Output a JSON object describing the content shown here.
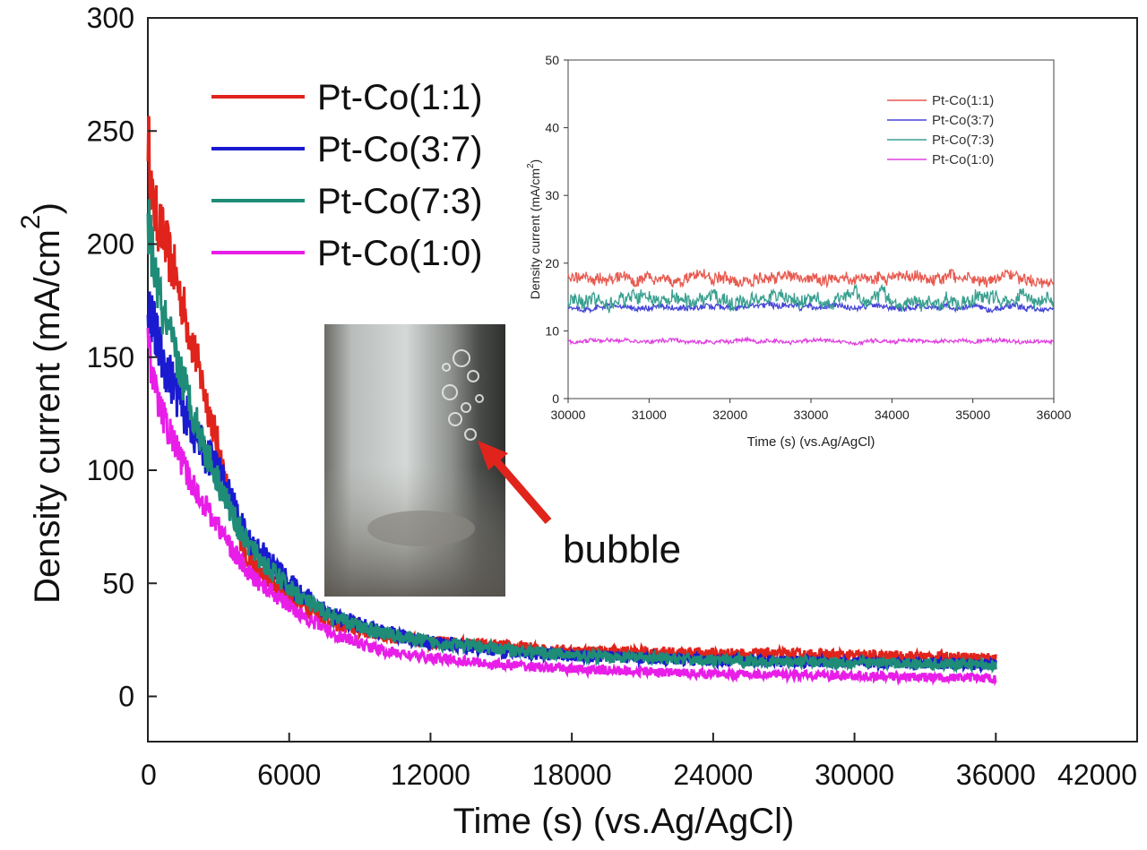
{
  "chart_data": [
    {
      "type": "line",
      "xlabel": "Time (s) (vs.Ag/AgCl)",
      "ylabel": "Density current (mA/cm",
      "ylabel_sup": "2",
      "ylabel_close": ")",
      "xlim": [
        0,
        42000
      ],
      "ylim": [
        -20,
        300
      ],
      "xticks": [
        "0",
        "6000",
        "12000",
        "18000",
        "24000",
        "30000",
        "36000",
        "42000"
      ],
      "xtick_values": [
        0,
        6000,
        12000,
        18000,
        24000,
        30000,
        36000,
        42000
      ],
      "yticks": [
        "0",
        "50",
        "100",
        "150",
        "200",
        "250",
        "300"
      ],
      "ytick_values": [
        0,
        50,
        100,
        150,
        200,
        250,
        300
      ],
      "legend_position": "top-left",
      "annotation": "bubble",
      "series": [
        {
          "name": "Pt-Co(1:1)",
          "color": "#e0241c",
          "x": [
            0,
            200,
            600,
            1200,
            1800,
            2400,
            3000,
            3600,
            4200,
            5000,
            6000,
            7000,
            8000,
            10000,
            12000,
            15000,
            18000,
            24000,
            30000,
            36000
          ],
          "y": [
            250,
            217,
            205,
            185,
            160,
            135,
            110,
            80,
            62,
            52,
            45,
            38,
            32,
            27,
            24,
            22,
            20,
            19,
            18,
            17
          ]
        },
        {
          "name": "Pt-Co(3:7)",
          "color": "#1a1ad0",
          "x": [
            0,
            200,
            600,
            1200,
            1800,
            2400,
            3000,
            3600,
            4200,
            5000,
            6000,
            7000,
            8000,
            10000,
            12000,
            15000,
            18000,
            24000,
            30000,
            36000
          ],
          "y": [
            175,
            165,
            150,
            135,
            120,
            108,
            100,
            85,
            70,
            62,
            50,
            42,
            35,
            28,
            24,
            20,
            18,
            16,
            15,
            14
          ]
        },
        {
          "name": "Pt-Co(7:3)",
          "color": "#1f8c78",
          "x": [
            0,
            200,
            600,
            1200,
            1800,
            2400,
            3000,
            3600,
            4200,
            5000,
            6000,
            7000,
            8000,
            10000,
            12000,
            15000,
            18000,
            24000,
            30000,
            36000
          ],
          "y": [
            210,
            195,
            170,
            150,
            130,
            110,
            95,
            80,
            68,
            58,
            48,
            40,
            34,
            28,
            24,
            21,
            18,
            16,
            15,
            14
          ]
        },
        {
          "name": "Pt-Co(1:0)",
          "color": "#e81ee8",
          "x": [
            0,
            200,
            600,
            1200,
            1800,
            2400,
            3000,
            3600,
            4200,
            5000,
            6000,
            7000,
            8000,
            10000,
            12000,
            15000,
            18000,
            24000,
            30000,
            36000
          ],
          "y": [
            160,
            140,
            125,
            110,
            95,
            85,
            75,
            65,
            55,
            48,
            40,
            33,
            27,
            20,
            17,
            14,
            12,
            10,
            9,
            8
          ]
        }
      ]
    },
    {
      "type": "line",
      "xlabel": "Time (s) (vs.Ag/AgCl)",
      "ylabel": "Density current (mA/cm",
      "ylabel_sup": "2",
      "ylabel_close": ")",
      "xlim": [
        30000,
        36000
      ],
      "ylim": [
        0,
        50
      ],
      "xticks": [
        "30000",
        "31000",
        "32000",
        "33000",
        "34000",
        "35000",
        "36000"
      ],
      "xtick_values": [
        30000,
        31000,
        32000,
        33000,
        34000,
        35000,
        36000
      ],
      "yticks": [
        "0",
        "10",
        "20",
        "30",
        "40",
        "50"
      ],
      "ytick_values": [
        0,
        10,
        20,
        30,
        40,
        50
      ],
      "legend_position": "top-right",
      "series": [
        {
          "name": "Pt-Co(1:1)",
          "color": "#e85a50",
          "mean": 17.8,
          "noise": 1.6
        },
        {
          "name": "Pt-Co(3:7)",
          "color": "#4646d8",
          "mean": 13.5,
          "noise": 0.8
        },
        {
          "name": "Pt-Co(7:3)",
          "color": "#3aa090",
          "mean": 14.5,
          "noise": 2.0
        },
        {
          "name": "Pt-Co(1:0)",
          "color": "#e040e0",
          "mean": 8.5,
          "noise": 0.5
        }
      ]
    }
  ],
  "photo": {
    "label": "bubble",
    "arrow_color": "#e0241c"
  }
}
